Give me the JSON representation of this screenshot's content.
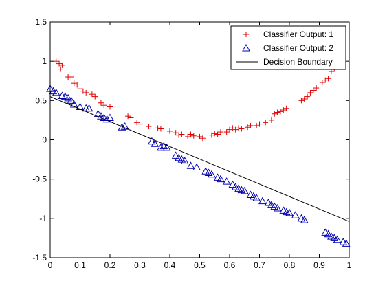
{
  "chart_data": {
    "type": "scatter",
    "title": "",
    "xlabel": "",
    "ylabel": "",
    "xlim": [
      0,
      1
    ],
    "ylim": [
      -1.5,
      1.5
    ],
    "xticks": [
      "0",
      "0.1",
      "0.2",
      "0.3",
      "0.4",
      "0.5",
      "0.6",
      "0.7",
      "0.8",
      "0.9",
      "1"
    ],
    "yticks": [
      "1.5",
      "1",
      "0.5",
      "0",
      "-0.5",
      "-1",
      "-1.5"
    ],
    "grid": false,
    "legend_position": "top-right",
    "series": [
      {
        "name": "Classifier Output: 1",
        "marker": "plus",
        "color": "#e00000",
        "points": [
          [
            0.02,
            1.0
          ],
          [
            0.03,
            0.97
          ],
          [
            0.04,
            0.95
          ],
          [
            0.035,
            0.9
          ],
          [
            0.06,
            0.8
          ],
          [
            0.07,
            0.8
          ],
          [
            0.08,
            0.72
          ],
          [
            0.09,
            0.7
          ],
          [
            0.1,
            0.65
          ],
          [
            0.11,
            0.62
          ],
          [
            0.12,
            0.6
          ],
          [
            0.14,
            0.58
          ],
          [
            0.15,
            0.55
          ],
          [
            0.17,
            0.47
          ],
          [
            0.18,
            0.44
          ],
          [
            0.2,
            0.42
          ],
          [
            0.26,
            0.3
          ],
          [
            0.27,
            0.28
          ],
          [
            0.29,
            0.22
          ],
          [
            0.3,
            0.2
          ],
          [
            0.33,
            0.17
          ],
          [
            0.36,
            0.15
          ],
          [
            0.37,
            0.14
          ],
          [
            0.4,
            0.11
          ],
          [
            0.42,
            0.09
          ],
          [
            0.43,
            0.06
          ],
          [
            0.44,
            0.07
          ],
          [
            0.46,
            0.04
          ],
          [
            0.47,
            0.07
          ],
          [
            0.48,
            0.05
          ],
          [
            0.5,
            0.04
          ],
          [
            0.51,
            0.02
          ],
          [
            0.54,
            0.06
          ],
          [
            0.55,
            0.08
          ],
          [
            0.56,
            0.07
          ],
          [
            0.57,
            0.1
          ],
          [
            0.59,
            0.1
          ],
          [
            0.6,
            0.13
          ],
          [
            0.61,
            0.15
          ],
          [
            0.62,
            0.13
          ],
          [
            0.63,
            0.15
          ],
          [
            0.64,
            0.14
          ],
          [
            0.66,
            0.16
          ],
          [
            0.67,
            0.18
          ],
          [
            0.69,
            0.18
          ],
          [
            0.7,
            0.2
          ],
          [
            0.72,
            0.22
          ],
          [
            0.74,
            0.25
          ],
          [
            0.75,
            0.33
          ],
          [
            0.76,
            0.35
          ],
          [
            0.77,
            0.36
          ],
          [
            0.78,
            0.38
          ],
          [
            0.79,
            0.4
          ],
          [
            0.84,
            0.5
          ],
          [
            0.85,
            0.52
          ],
          [
            0.86,
            0.55
          ],
          [
            0.87,
            0.6
          ],
          [
            0.88,
            0.63
          ],
          [
            0.89,
            0.66
          ],
          [
            0.91,
            0.73
          ],
          [
            0.92,
            0.76
          ],
          [
            0.93,
            0.78
          ],
          [
            0.94,
            0.87
          ],
          [
            0.95,
            0.9
          ]
        ]
      },
      {
        "name": "Classifier Output: 2",
        "marker": "triangle",
        "color": "#0000b0",
        "points": [
          [
            0.0,
            0.65
          ],
          [
            0.01,
            0.62
          ],
          [
            0.02,
            0.6
          ],
          [
            0.04,
            0.56
          ],
          [
            0.05,
            0.55
          ],
          [
            0.06,
            0.53
          ],
          [
            0.07,
            0.5
          ],
          [
            0.08,
            0.45
          ],
          [
            0.1,
            0.42
          ],
          [
            0.12,
            0.4
          ],
          [
            0.13,
            0.4
          ],
          [
            0.16,
            0.33
          ],
          [
            0.17,
            0.3
          ],
          [
            0.18,
            0.28
          ],
          [
            0.19,
            0.26
          ],
          [
            0.2,
            0.28
          ],
          [
            0.24,
            0.16
          ],
          [
            0.25,
            0.17
          ],
          [
            0.34,
            -0.02
          ],
          [
            0.35,
            -0.05
          ],
          [
            0.37,
            -0.1
          ],
          [
            0.38,
            -0.08
          ],
          [
            0.39,
            -0.1
          ],
          [
            0.42,
            -0.2
          ],
          [
            0.43,
            -0.23
          ],
          [
            0.44,
            -0.25
          ],
          [
            0.45,
            -0.27
          ],
          [
            0.47,
            -0.33
          ],
          [
            0.49,
            -0.35
          ],
          [
            0.52,
            -0.4
          ],
          [
            0.53,
            -0.42
          ],
          [
            0.54,
            -0.44
          ],
          [
            0.56,
            -0.48
          ],
          [
            0.57,
            -0.5
          ],
          [
            0.59,
            -0.53
          ],
          [
            0.61,
            -0.57
          ],
          [
            0.62,
            -0.6
          ],
          [
            0.63,
            -0.62
          ],
          [
            0.64,
            -0.64
          ],
          [
            0.65,
            -0.65
          ],
          [
            0.67,
            -0.7
          ],
          [
            0.68,
            -0.72
          ],
          [
            0.69,
            -0.74
          ],
          [
            0.71,
            -0.78
          ],
          [
            0.73,
            -0.8
          ],
          [
            0.74,
            -0.83
          ],
          [
            0.75,
            -0.85
          ],
          [
            0.76,
            -0.87
          ],
          [
            0.78,
            -0.9
          ],
          [
            0.79,
            -0.92
          ],
          [
            0.8,
            -0.93
          ],
          [
            0.82,
            -0.96
          ],
          [
            0.84,
            -1.0
          ],
          [
            0.85,
            -1.02
          ],
          [
            0.92,
            -1.18
          ],
          [
            0.93,
            -1.2
          ],
          [
            0.94,
            -1.23
          ],
          [
            0.95,
            -1.25
          ],
          [
            0.96,
            -1.27
          ],
          [
            0.98,
            -1.3
          ],
          [
            0.99,
            -1.32
          ]
        ]
      },
      {
        "name": "Decision Boundary",
        "marker": "line",
        "color": "#000000",
        "points": [
          [
            0.0,
            0.55
          ],
          [
            1.0,
            -1.04
          ]
        ]
      }
    ]
  }
}
